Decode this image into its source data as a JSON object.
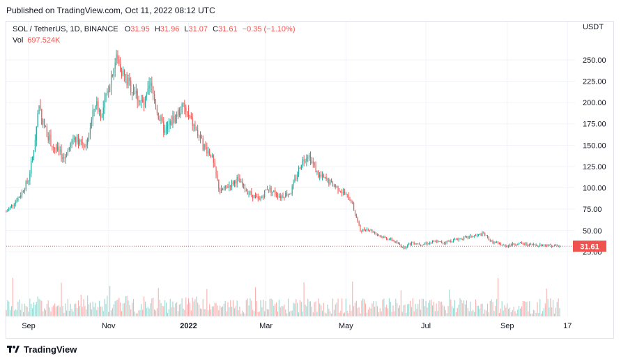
{
  "header": {
    "published": "Published on TradingView.com, Oct 11, 2022 08:12 UTC"
  },
  "legend": {
    "symbol": "SOL / TetherUS, 1D, BINANCE",
    "o_label": "O",
    "o_value": "31.95",
    "h_label": "H",
    "h_value": "31.96",
    "l_label": "L",
    "l_value": "31.07",
    "c_label": "C",
    "c_value": "31.61",
    "change": "−0.35 (−1.10%)",
    "vol_label": "Vol",
    "vol_value": "697.524K"
  },
  "price_axis": {
    "currency": "USDT",
    "last_price_tag": "31.61"
  },
  "footer": {
    "brand": "TradingView"
  },
  "colors": {
    "up": "#26a69a",
    "down": "#ef5350",
    "last_price": "#ef5350",
    "grid": "#f0f3fa"
  },
  "chart_data": {
    "type": "candlestick",
    "y_axis": {
      "ticks": [
        25,
        50,
        75,
        100,
        125,
        150,
        175,
        200,
        225,
        250
      ],
      "range": [
        0,
        263
      ]
    },
    "x_axis": {
      "tick_labels": [
        "Sep",
        "Nov",
        "2022",
        "Mar",
        "May",
        "Jul",
        "Sep",
        "17"
      ],
      "start": "2021-08-15",
      "end": "2022-10-11"
    },
    "last_price": 31.61,
    "close_path": [
      [
        "2021-08-15",
        72
      ],
      [
        "2021-08-25",
        90
      ],
      [
        "2021-09-01",
        110
      ],
      [
        "2021-09-05",
        145
      ],
      [
        "2021-09-09",
        200
      ],
      [
        "2021-09-11",
        180
      ],
      [
        "2021-09-19",
        150
      ],
      [
        "2021-09-28",
        135
      ],
      [
        "2021-10-06",
        160
      ],
      [
        "2021-10-15",
        150
      ],
      [
        "2021-10-22",
        200
      ],
      [
        "2021-10-27",
        185
      ],
      [
        "2021-11-04",
        238
      ],
      [
        "2021-11-07",
        252
      ],
      [
        "2021-11-15",
        225
      ],
      [
        "2021-11-22",
        210
      ],
      [
        "2021-11-28",
        195
      ],
      [
        "2021-12-03",
        220
      ],
      [
        "2021-12-09",
        185
      ],
      [
        "2021-12-14",
        165
      ],
      [
        "2021-12-20",
        180
      ],
      [
        "2021-12-28",
        195
      ],
      [
        "2022-01-04",
        175
      ],
      [
        "2022-01-12",
        150
      ],
      [
        "2022-01-18",
        140
      ],
      [
        "2022-01-25",
        95
      ],
      [
        "2022-02-07",
        110
      ],
      [
        "2022-02-14",
        97
      ],
      [
        "2022-02-24",
        85
      ],
      [
        "2022-03-02",
        100
      ],
      [
        "2022-03-12",
        90
      ],
      [
        "2022-03-20",
        95
      ],
      [
        "2022-03-28",
        130
      ],
      [
        "2022-04-02",
        140
      ],
      [
        "2022-04-10",
        115
      ],
      [
        "2022-04-25",
        100
      ],
      [
        "2022-05-05",
        85
      ],
      [
        "2022-05-12",
        50
      ],
      [
        "2022-05-18",
        52
      ],
      [
        "2022-05-28",
        43
      ],
      [
        "2022-06-05",
        39
      ],
      [
        "2022-06-14",
        30
      ],
      [
        "2022-06-20",
        36
      ],
      [
        "2022-06-28",
        34
      ],
      [
        "2022-07-08",
        37
      ],
      [
        "2022-07-15",
        36
      ],
      [
        "2022-07-25",
        40
      ],
      [
        "2022-08-05",
        43
      ],
      [
        "2022-08-14",
        46
      ],
      [
        "2022-08-20",
        37
      ],
      [
        "2022-08-30",
        32
      ],
      [
        "2022-09-10",
        35
      ],
      [
        "2022-09-20",
        33
      ],
      [
        "2022-09-30",
        33
      ],
      [
        "2022-10-11",
        31.61
      ]
    ]
  }
}
